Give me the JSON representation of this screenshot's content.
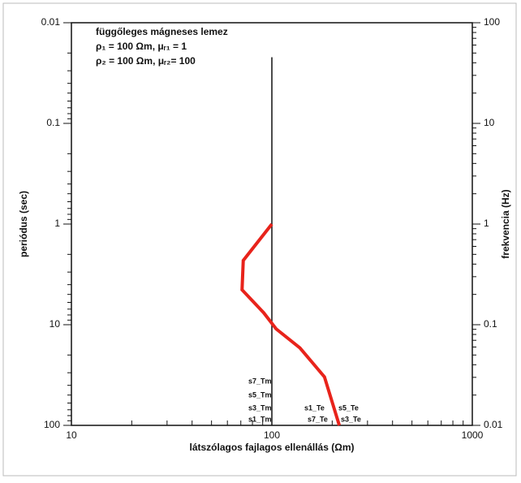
{
  "chart_data": {
    "type": "line",
    "title_lines": [
      "függőleges mágneses lemez",
      "ρ₁ = 100 Ωm, μᵣ₁ = 1",
      "ρ₂ = 100 Ωm, μᵣ₂= 100"
    ],
    "x_label": "látszólagos fajlagos ellenállás (Ωm)",
    "y_label": "periódus (sec)",
    "y2_label": "frekvencia (Hz)",
    "x_log": true,
    "y_log": true,
    "xlim": [
      10,
      1000
    ],
    "xticks": [
      10,
      100,
      1000
    ],
    "ylim": [
      0.01,
      100
    ],
    "yticks": [
      0.01,
      0.1,
      1,
      10,
      100
    ],
    "y2lim": [
      100,
      0.01
    ],
    "y2ticks": [
      100,
      10,
      1,
      0.1,
      0.01
    ],
    "series": [
      {
        "color": "#111111",
        "x": [
          100,
          100
        ],
        "values": [
          0.022,
          100
        ]
      },
      {
        "color": "#e8231b",
        "x": [
          100,
          72,
          71,
          91,
          105,
          138,
          183,
          217
        ],
        "values": [
          1,
          2.3,
          4.5,
          7.6,
          11,
          17,
          33,
          100
        ]
      }
    ],
    "annotations": [
      {
        "text": "s7_Tm",
        "color": "#111111"
      },
      {
        "text": "s5_Tm",
        "color": "#111111"
      },
      {
        "text": "s3_Tm",
        "color": "#111111"
      },
      {
        "text": "s1_Tm",
        "color": "#111111"
      },
      {
        "text": "s1_Te",
        "color": "#e8231b"
      },
      {
        "text": "s5_Te",
        "color": "#e8231b"
      },
      {
        "text": "s7_Te",
        "color": "#e8231b"
      },
      {
        "text": "s3_Te",
        "color": "#e8231b"
      }
    ]
  }
}
